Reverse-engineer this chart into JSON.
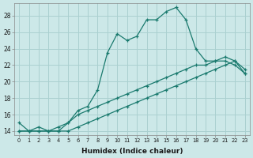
{
  "xlabel": "Humidex (Indice chaleur)",
  "ylabel": "",
  "bg_color": "#cce8e8",
  "grid_color": "#aad0d0",
  "line_color": "#1a7a6e",
  "xlim": [
    -0.5,
    23.5
  ],
  "ylim": [
    13.5,
    29.5
  ],
  "xticks": [
    0,
    1,
    2,
    3,
    4,
    5,
    6,
    7,
    8,
    9,
    10,
    11,
    12,
    13,
    14,
    15,
    16,
    17,
    18,
    19,
    20,
    21,
    22,
    23
  ],
  "yticks": [
    14,
    16,
    18,
    20,
    22,
    24,
    26,
    28
  ],
  "line1_x": [
    0,
    1,
    2,
    3,
    4,
    5,
    6,
    7,
    8,
    9,
    10,
    11,
    12,
    13,
    14,
    15,
    16,
    17,
    18,
    19,
    20,
    21,
    22,
    23
  ],
  "line1_y": [
    15,
    14,
    14.5,
    14,
    14,
    15,
    16.5,
    17,
    19,
    23.5,
    25.8,
    25,
    25.5,
    27.5,
    27.5,
    28.5,
    29,
    27.5,
    24,
    22.5,
    22.5,
    22.5,
    22,
    21
  ],
  "line2_x": [
    0,
    1,
    2,
    3,
    4,
    5,
    6,
    7,
    8,
    9,
    10,
    11,
    12,
    13,
    14,
    15,
    16,
    17,
    18,
    19,
    20,
    21,
    22,
    23
  ],
  "line2_y": [
    14,
    14,
    14,
    14,
    14.5,
    15,
    16,
    16.5,
    17,
    17.5,
    18,
    18.5,
    19,
    19.5,
    20,
    20.5,
    21,
    21.5,
    22,
    22,
    22.5,
    23,
    22.5,
    21
  ],
  "line3_x": [
    0,
    1,
    2,
    3,
    4,
    5,
    6,
    7,
    8,
    9,
    10,
    11,
    12,
    13,
    14,
    15,
    16,
    17,
    18,
    19,
    20,
    21,
    22,
    23
  ],
  "line3_y": [
    14,
    14,
    14,
    14,
    14,
    14,
    14.5,
    15,
    15.5,
    16,
    16.5,
    17,
    17.5,
    18,
    18.5,
    19,
    19.5,
    20,
    20.5,
    21,
    21.5,
    22,
    22.5,
    21.5
  ]
}
